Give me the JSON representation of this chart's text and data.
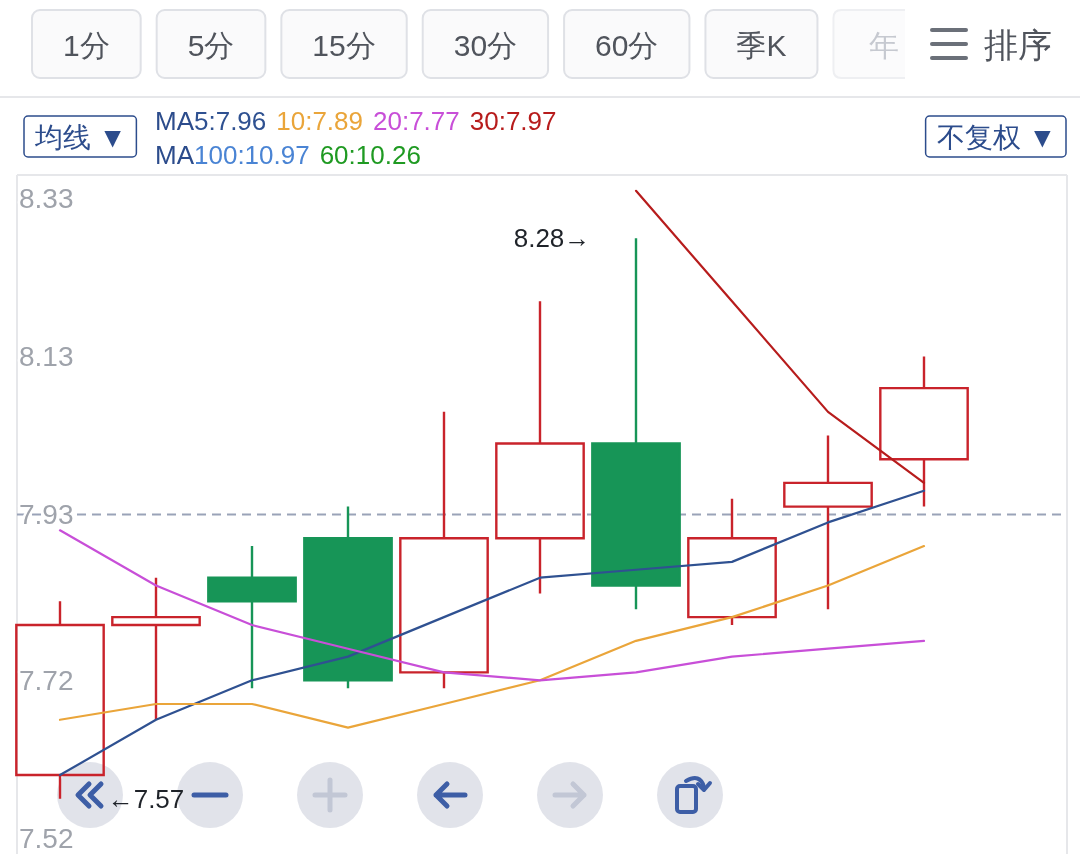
{
  "chart_data": {
    "type": "candlestick",
    "categories": [
      null,
      null,
      null,
      null,
      null,
      null,
      null,
      null,
      null,
      null
    ],
    "ohlc": [
      [
        7.6,
        7.82,
        7.57,
        7.79
      ],
      [
        7.79,
        7.85,
        7.67,
        7.8
      ],
      [
        7.85,
        7.89,
        7.71,
        7.82
      ],
      [
        7.9,
        7.94,
        7.71,
        7.72
      ],
      [
        7.73,
        8.06,
        7.71,
        7.9
      ],
      [
        7.9,
        8.2,
        7.83,
        8.02
      ],
      [
        8.02,
        8.28,
        7.81,
        7.84
      ],
      [
        7.8,
        7.95,
        7.79,
        7.9
      ],
      [
        7.94,
        8.03,
        7.81,
        7.97
      ],
      [
        8.0,
        8.13,
        7.94,
        8.09
      ]
    ],
    "colors": [
      "#c9232b",
      "#c9232b",
      "#179557",
      "#179557",
      "#c9232b",
      "#c9232b",
      "#179557",
      "#c9232b",
      "#c9232b",
      "#c9232b"
    ],
    "series": [
      {
        "type": "line",
        "name": "5:7.96",
        "color": "#2f5191",
        "values": [
          7.6,
          7.67,
          7.72,
          7.75,
          7.8,
          7.85,
          7.86,
          7.87,
          7.92,
          7.96
        ]
      },
      {
        "type": "line",
        "name": "10:7.89",
        "color": "#eaa53a",
        "values": [
          7.67,
          7.69,
          7.69,
          7.66,
          7.69,
          7.72,
          7.77,
          7.8,
          7.84,
          7.89
        ]
      },
      {
        "type": "line",
        "name": "20:7.77",
        "color": "#c84fd8",
        "values": [
          7.91,
          7.84,
          7.79,
          7.76,
          7.73,
          7.72,
          7.73,
          7.75,
          7.76,
          7.77
        ]
      },
      {
        "type": "line",
        "name": "30:7.97",
        "color": "#b71c1c",
        "values": [
          null,
          null,
          null,
          null,
          null,
          null,
          8.34,
          8.2,
          8.06,
          7.97
        ]
      },
      {
        "type": "line",
        "name": "100:10.97",
        "color": "#4a84d4",
        "values": [
          null,
          null,
          null,
          null,
          null,
          null,
          null,
          null,
          null,
          null
        ]
      },
      {
        "type": "line",
        "name": "60:10.26",
        "color": "#1f9a22",
        "values": [
          null,
          null,
          null,
          null,
          null,
          null,
          null,
          null,
          null,
          null
        ]
      }
    ],
    "ylim": [
      7.5,
      8.36
    ],
    "yticks": [
      7.52,
      7.72,
      7.93,
      8.13,
      8.33
    ],
    "tick_labels": "y",
    "legend": "top left",
    "legend_title": "MA",
    "ref_lines": [
      {
        "axis": "y",
        "value": 7.93,
        "color": "#9aa3b8",
        "line_style": "dashed"
      }
    ],
    "annotations": [
      "1分",
      "5分",
      "15分",
      "30分",
      "60分",
      "季K",
      "年",
      "排序",
      "均线 ▼",
      "不复权 ▼",
      "8.28→",
      "←7.57"
    ]
  }
}
